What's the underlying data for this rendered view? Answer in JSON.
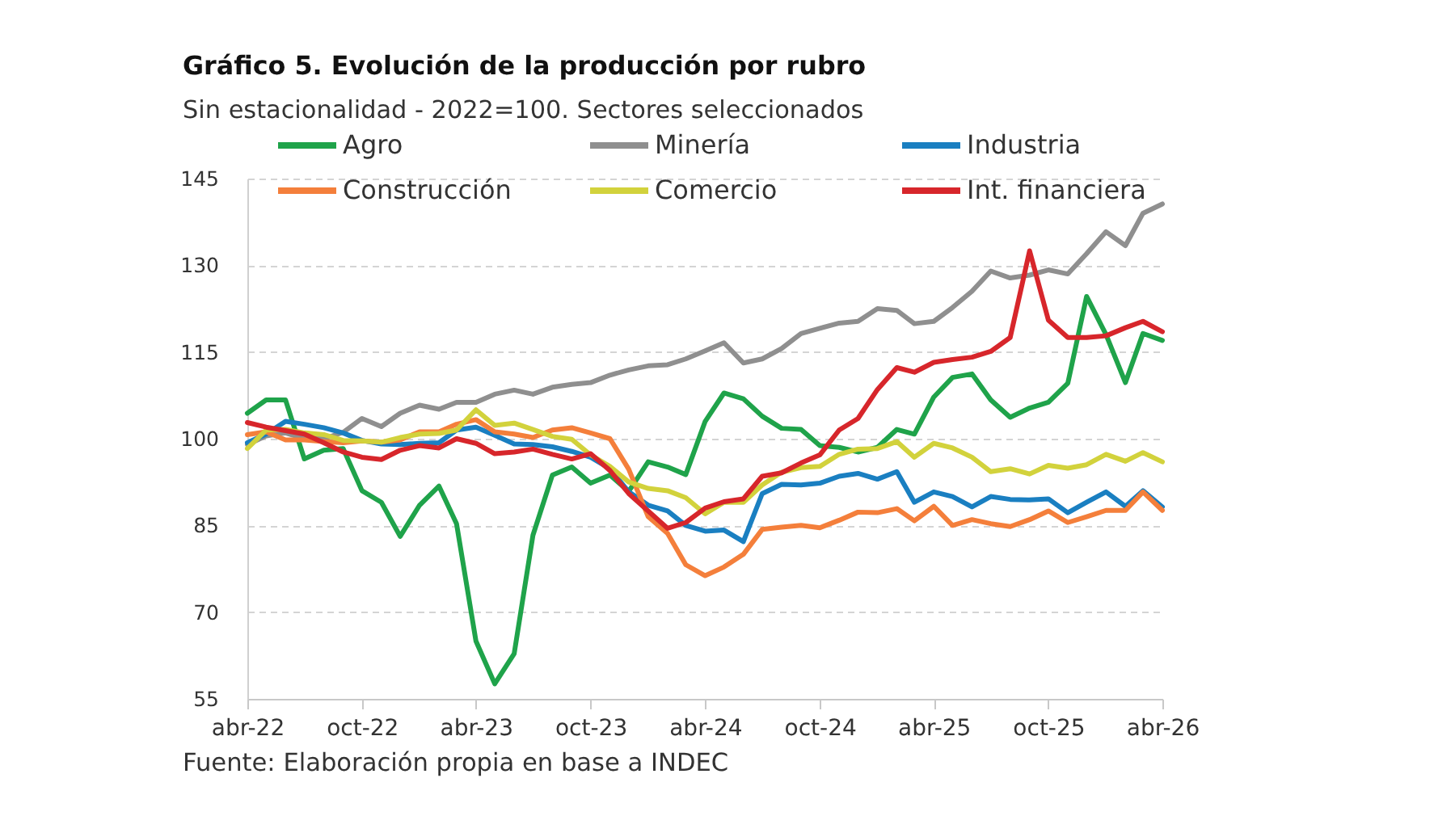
{
  "chart_data": {
    "type": "line",
    "title": "Gráfico 5. Evolución de la producción por rubro",
    "subtitle": "Sin estacionalidad - 2022=100. Sectores seleccionados",
    "annotations": [
      "Fuente: Elaboración propia en base a INDEC"
    ],
    "x": [
      "2022-04",
      "2022-05",
      "2022-06",
      "2022-07",
      "2022-08",
      "2022-09",
      "2022-10",
      "2022-11",
      "2022-12",
      "2023-01",
      "2023-02",
      "2023-03",
      "2023-04",
      "2023-05",
      "2023-06",
      "2023-07",
      "2023-08",
      "2023-09",
      "2023-10",
      "2023-11",
      "2023-12",
      "2024-01",
      "2024-02",
      "2024-03",
      "2024-04",
      "2024-05",
      "2024-06",
      "2024-07",
      "2024-08",
      "2024-09",
      "2024-10",
      "2024-11",
      "2024-12",
      "2025-01",
      "2025-02",
      "2025-03",
      "2025-04",
      "2025-05",
      "2025-06",
      "2025-07",
      "2025-08",
      "2025-09",
      "2025-10",
      "2025-11",
      "2025-12",
      "2026-01",
      "2026-02",
      "2026-03",
      "2026-04"
    ],
    "series": [
      {
        "name": "Agro",
        "color": "#1fa34a",
        "values": [
          104.4,
          106.7,
          106.7,
          96.5,
          98,
          98.3,
          91,
          89,
          83.1,
          88.5,
          91.8,
          85.3,
          65,
          57.6,
          62.8,
          83.3,
          93.7,
          95.1,
          92.3,
          93.7,
          90.9,
          96,
          95.1,
          93.8,
          103,
          107.9,
          106.9,
          103.9,
          101.8,
          101.6,
          98.8,
          98.5,
          97.7,
          98.5,
          101.6,
          100.8,
          107.2,
          110.6,
          111.2,
          106.7,
          103.7,
          105.3,
          106.3,
          109.6,
          124.6,
          118,
          109.7,
          118.2,
          117
        ]
      },
      {
        "name": "Minería",
        "color": "#8f8f8f",
        "values": [
          99,
          100.5,
          101,
          100,
          100,
          101.1,
          103.5,
          102.1,
          104.4,
          105.8,
          105.1,
          106.3,
          106.3,
          107.7,
          108.4,
          107.7,
          108.9,
          109.4,
          109.7,
          111,
          111.9,
          112.6,
          112.8,
          113.8,
          115.2,
          116.6,
          113.1,
          113.8,
          115.6,
          118.2,
          119.1,
          120,
          120.3,
          122.5,
          122.2,
          119.9,
          120.3,
          122.7,
          125.5,
          129,
          127.8,
          128.3,
          129.2,
          128.5,
          132,
          135.8,
          133.4,
          139,
          140.6
        ]
      },
      {
        "name": "Industria",
        "color": "#1a7fc1",
        "values": [
          99.3,
          100.8,
          103,
          102.5,
          101.9,
          101,
          99.7,
          99.1,
          99,
          99.2,
          99.3,
          101.5,
          102,
          100.6,
          99.1,
          99,
          98.6,
          97.8,
          96.8,
          94.8,
          90.8,
          88.5,
          87.5,
          85,
          84,
          84.2,
          82.2,
          90.5,
          92.1,
          92,
          92.3,
          93.5,
          94,
          93,
          94.3,
          89,
          90.8,
          90,
          88.2,
          90,
          89.5,
          89.4,
          89.6,
          87.2,
          89,
          90.8,
          88.3,
          91,
          88.2
        ]
      },
      {
        "name": "Construcción",
        "color": "#f47f3b",
        "values": [
          100.7,
          101.2,
          99.8,
          99.8,
          99.5,
          99.3,
          99.6,
          99.4,
          99.8,
          101.2,
          101.2,
          102.5,
          103.3,
          101.2,
          100.8,
          100.2,
          101.5,
          101.9,
          101,
          100,
          94.7,
          86.5,
          83.6,
          78.2,
          76.3,
          77.8,
          80,
          84.3,
          84.7,
          85,
          84.6,
          85.9,
          87.3,
          87.2,
          87.9,
          85.8,
          88.3,
          85,
          86,
          85.3,
          84.8,
          86,
          87.5,
          85.5,
          86.5,
          87.6,
          87.6,
          90.8,
          87.6
        ]
      },
      {
        "name": "Comercio",
        "color": "#d2d23c",
        "values": [
          98.3,
          101.5,
          101.6,
          101,
          100.7,
          99.7,
          99.6,
          99.4,
          100.2,
          100.8,
          100.9,
          101.5,
          105,
          102.3,
          102.7,
          101.6,
          100.4,
          99.9,
          97.2,
          95.2,
          92.5,
          91.4,
          91,
          89.8,
          87,
          89,
          89,
          92,
          94.2,
          95,
          95.2,
          97.3,
          98.2,
          98.3,
          99.5,
          96.8,
          99.2,
          98.4,
          96.8,
          94.3,
          94.8,
          93.9,
          95.4,
          94.9,
          95.5,
          97.3,
          96.1,
          97.6,
          96
        ]
      },
      {
        "name": "Int. financiera",
        "color": "#d7262b",
        "values": [
          102.8,
          102,
          101.4,
          100.8,
          99.3,
          97.7,
          96.8,
          96.4,
          98,
          98.8,
          98.4,
          100,
          99.2,
          97.4,
          97.7,
          98.2,
          97.3,
          96.5,
          97.4,
          94.5,
          90.5,
          87.5,
          84.5,
          85.5,
          88,
          89.1,
          89.6,
          93.5,
          94.1,
          95.8,
          97.2,
          101.5,
          103.5,
          108.5,
          112.3,
          111.5,
          113.2,
          113.7,
          114.1,
          115.1,
          117.5,
          132.5,
          120.5,
          117.5,
          117.5,
          117.8,
          119.2,
          120.3,
          118.5
        ]
      }
    ],
    "xlim": [
      "2022-04",
      "2026-04"
    ],
    "xticks": [
      {
        "value": "2022-04",
        "label": "abr-22"
      },
      {
        "value": "2022-10",
        "label": "oct-22"
      },
      {
        "value": "2023-04",
        "label": "abr-23"
      },
      {
        "value": "2023-10",
        "label": "oct-23"
      },
      {
        "value": "2024-04",
        "label": "abr-24"
      },
      {
        "value": "2024-10",
        "label": "oct-24"
      },
      {
        "value": "2025-04",
        "label": "abr-25"
      },
      {
        "value": "2025-10",
        "label": "oct-25"
      },
      {
        "value": "2026-04",
        "label": "abr-26"
      }
    ],
    "ylim": [
      55,
      145
    ],
    "yticks": [
      55,
      70,
      85,
      100,
      115,
      130,
      145
    ],
    "grid": "y",
    "legend": "top"
  }
}
